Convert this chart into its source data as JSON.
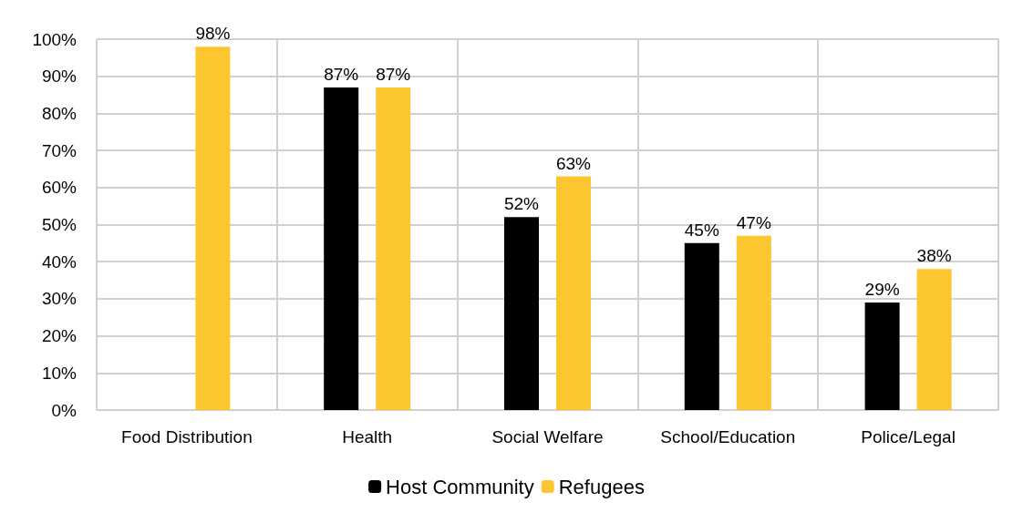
{
  "chart_data": {
    "type": "bar",
    "categories": [
      "Food Distribution",
      "Health",
      "Social Welfare",
      "School/Education",
      "Police/Legal"
    ],
    "series": [
      {
        "name": "Host Community",
        "color": "#000000",
        "values": [
          null,
          87,
          52,
          45,
          29
        ],
        "value_labels": [
          null,
          "87%",
          "52%",
          "45%",
          "29%"
        ]
      },
      {
        "name": "Refugees",
        "color": "#fcc631",
        "values": [
          98,
          87,
          63,
          47,
          38
        ],
        "value_labels": [
          "98%",
          "87%",
          "63%",
          "47%",
          "38%"
        ]
      }
    ],
    "ylim": [
      0,
      100
    ],
    "yticks": [
      {
        "value": 0,
        "label": "0%"
      },
      {
        "value": 10,
        "label": "10%"
      },
      {
        "value": 20,
        "label": "20%"
      },
      {
        "value": 30,
        "label": "30%"
      },
      {
        "value": 40,
        "label": "40%"
      },
      {
        "value": 50,
        "label": "50%"
      },
      {
        "value": 60,
        "label": "60%"
      },
      {
        "value": 70,
        "label": "70%"
      },
      {
        "value": 80,
        "label": "80%"
      },
      {
        "value": 90,
        "label": "90%"
      },
      {
        "value": 100,
        "label": "100%"
      }
    ],
    "grid": true,
    "legend": "bottom"
  }
}
